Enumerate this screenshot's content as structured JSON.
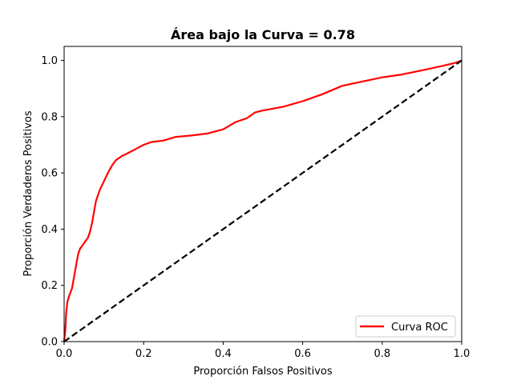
{
  "chart_data": {
    "type": "line",
    "title": "Área bajo la Curva = 0.78",
    "xlabel": "Proporción Falsos Positivos",
    "ylabel": "Proporción Verdaderos Positivos",
    "xlim": [
      0.0,
      1.0
    ],
    "ylim": [
      0.0,
      1.05
    ],
    "x_ticks": [
      "0.0",
      "0.2",
      "0.4",
      "0.6",
      "0.8",
      "1.0"
    ],
    "y_ticks": [
      "0.0",
      "0.2",
      "0.4",
      "0.6",
      "0.8",
      "1.0"
    ],
    "grid": false,
    "legend": {
      "position": "bottom-right",
      "entries": [
        "Curva ROC"
      ]
    },
    "series": [
      {
        "name": "Curva ROC",
        "color": "#ff0000",
        "style": "solid",
        "points": [
          [
            0.0,
            0.0
          ],
          [
            0.003,
            0.04
          ],
          [
            0.005,
            0.1
          ],
          [
            0.008,
            0.14
          ],
          [
            0.012,
            0.16
          ],
          [
            0.02,
            0.19
          ],
          [
            0.025,
            0.23
          ],
          [
            0.03,
            0.27
          ],
          [
            0.035,
            0.31
          ],
          [
            0.04,
            0.33
          ],
          [
            0.05,
            0.35
          ],
          [
            0.06,
            0.37
          ],
          [
            0.065,
            0.39
          ],
          [
            0.07,
            0.42
          ],
          [
            0.075,
            0.46
          ],
          [
            0.08,
            0.5
          ],
          [
            0.09,
            0.54
          ],
          [
            0.1,
            0.57
          ],
          [
            0.11,
            0.6
          ],
          [
            0.12,
            0.625
          ],
          [
            0.13,
            0.645
          ],
          [
            0.145,
            0.66
          ],
          [
            0.16,
            0.67
          ],
          [
            0.18,
            0.685
          ],
          [
            0.2,
            0.7
          ],
          [
            0.22,
            0.71
          ],
          [
            0.25,
            0.715
          ],
          [
            0.28,
            0.728
          ],
          [
            0.32,
            0.733
          ],
          [
            0.36,
            0.74
          ],
          [
            0.4,
            0.755
          ],
          [
            0.43,
            0.78
          ],
          [
            0.46,
            0.795
          ],
          [
            0.48,
            0.815
          ],
          [
            0.5,
            0.822
          ],
          [
            0.55,
            0.835
          ],
          [
            0.6,
            0.855
          ],
          [
            0.65,
            0.88
          ],
          [
            0.7,
            0.91
          ],
          [
            0.75,
            0.925
          ],
          [
            0.8,
            0.94
          ],
          [
            0.85,
            0.95
          ],
          [
            0.9,
            0.965
          ],
          [
            0.95,
            0.98
          ],
          [
            0.98,
            0.99
          ],
          [
            1.0,
            1.0
          ]
        ]
      },
      {
        "name": "",
        "color": "#000000",
        "style": "dashed",
        "points": [
          [
            0.0,
            0.0
          ],
          [
            1.0,
            1.0
          ]
        ]
      }
    ]
  }
}
